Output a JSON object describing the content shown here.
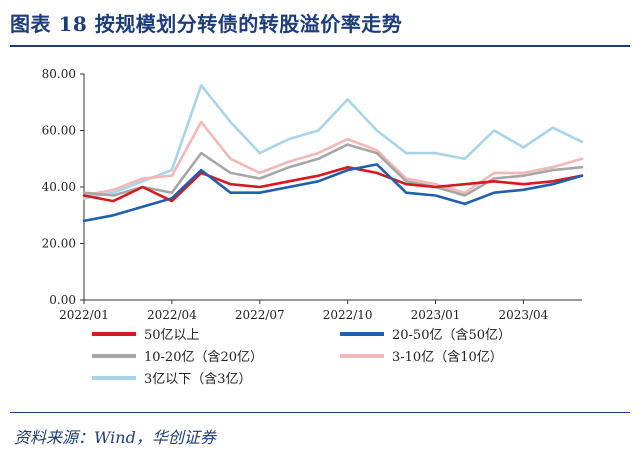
{
  "header": {
    "title": "图表 18 按规模划分转债的转股溢价率走势"
  },
  "footer": {
    "source": "资料来源：Wind，华创证券"
  },
  "chart_data": {
    "type": "line",
    "title": "",
    "xlabel": "",
    "ylabel": "",
    "ylim": [
      0,
      80
    ],
    "yticks": [
      "0.00",
      "20.00",
      "40.00",
      "60.00",
      "80.00"
    ],
    "xticks": [
      "2022/01",
      "2022/04",
      "2022/07",
      "2022/10",
      "2023/01",
      "2023/04"
    ],
    "x": [
      "2022/01",
      "2022/02",
      "2022/03",
      "2022/04",
      "2022/05",
      "2022/06",
      "2022/07",
      "2022/08",
      "2022/09",
      "2022/10",
      "2022/11",
      "2022/12",
      "2023/01",
      "2023/02",
      "2023/03",
      "2023/04",
      "2023/05",
      "2023/06"
    ],
    "grid": false,
    "legend_position": "bottom",
    "series": [
      {
        "name": "50亿以上",
        "color": "#d7191c",
        "values": [
          37,
          35,
          40,
          35,
          45,
          41,
          40,
          42,
          44,
          47,
          45,
          41,
          40,
          41,
          42,
          41,
          42,
          44
        ]
      },
      {
        "name": "20-50亿（含50亿）",
        "color": "#1f5fad",
        "values": [
          28,
          30,
          33,
          36,
          46,
          38,
          38,
          40,
          42,
          46,
          48,
          38,
          37,
          34,
          38,
          39,
          41,
          44
        ]
      },
      {
        "name": "10-20亿（含20亿）",
        "color": "#a6a6a6",
        "values": [
          38,
          37,
          40,
          38,
          52,
          45,
          43,
          47,
          50,
          55,
          52,
          42,
          40,
          37,
          43,
          44,
          46,
          47
        ]
      },
      {
        "name": "3-10亿（含10亿）",
        "color": "#f2b8b8",
        "values": [
          37,
          39,
          43,
          44,
          63,
          50,
          45,
          49,
          52,
          57,
          53,
          43,
          41,
          38,
          45,
          45,
          47,
          50
        ]
      },
      {
        "name": "3亿以下（含3亿）",
        "color": "#a8d4ea",
        "values": [
          36,
          38,
          42,
          46,
          76,
          63,
          52,
          57,
          60,
          71,
          60,
          52,
          52,
          50,
          60,
          54,
          61,
          56
        ]
      }
    ]
  }
}
